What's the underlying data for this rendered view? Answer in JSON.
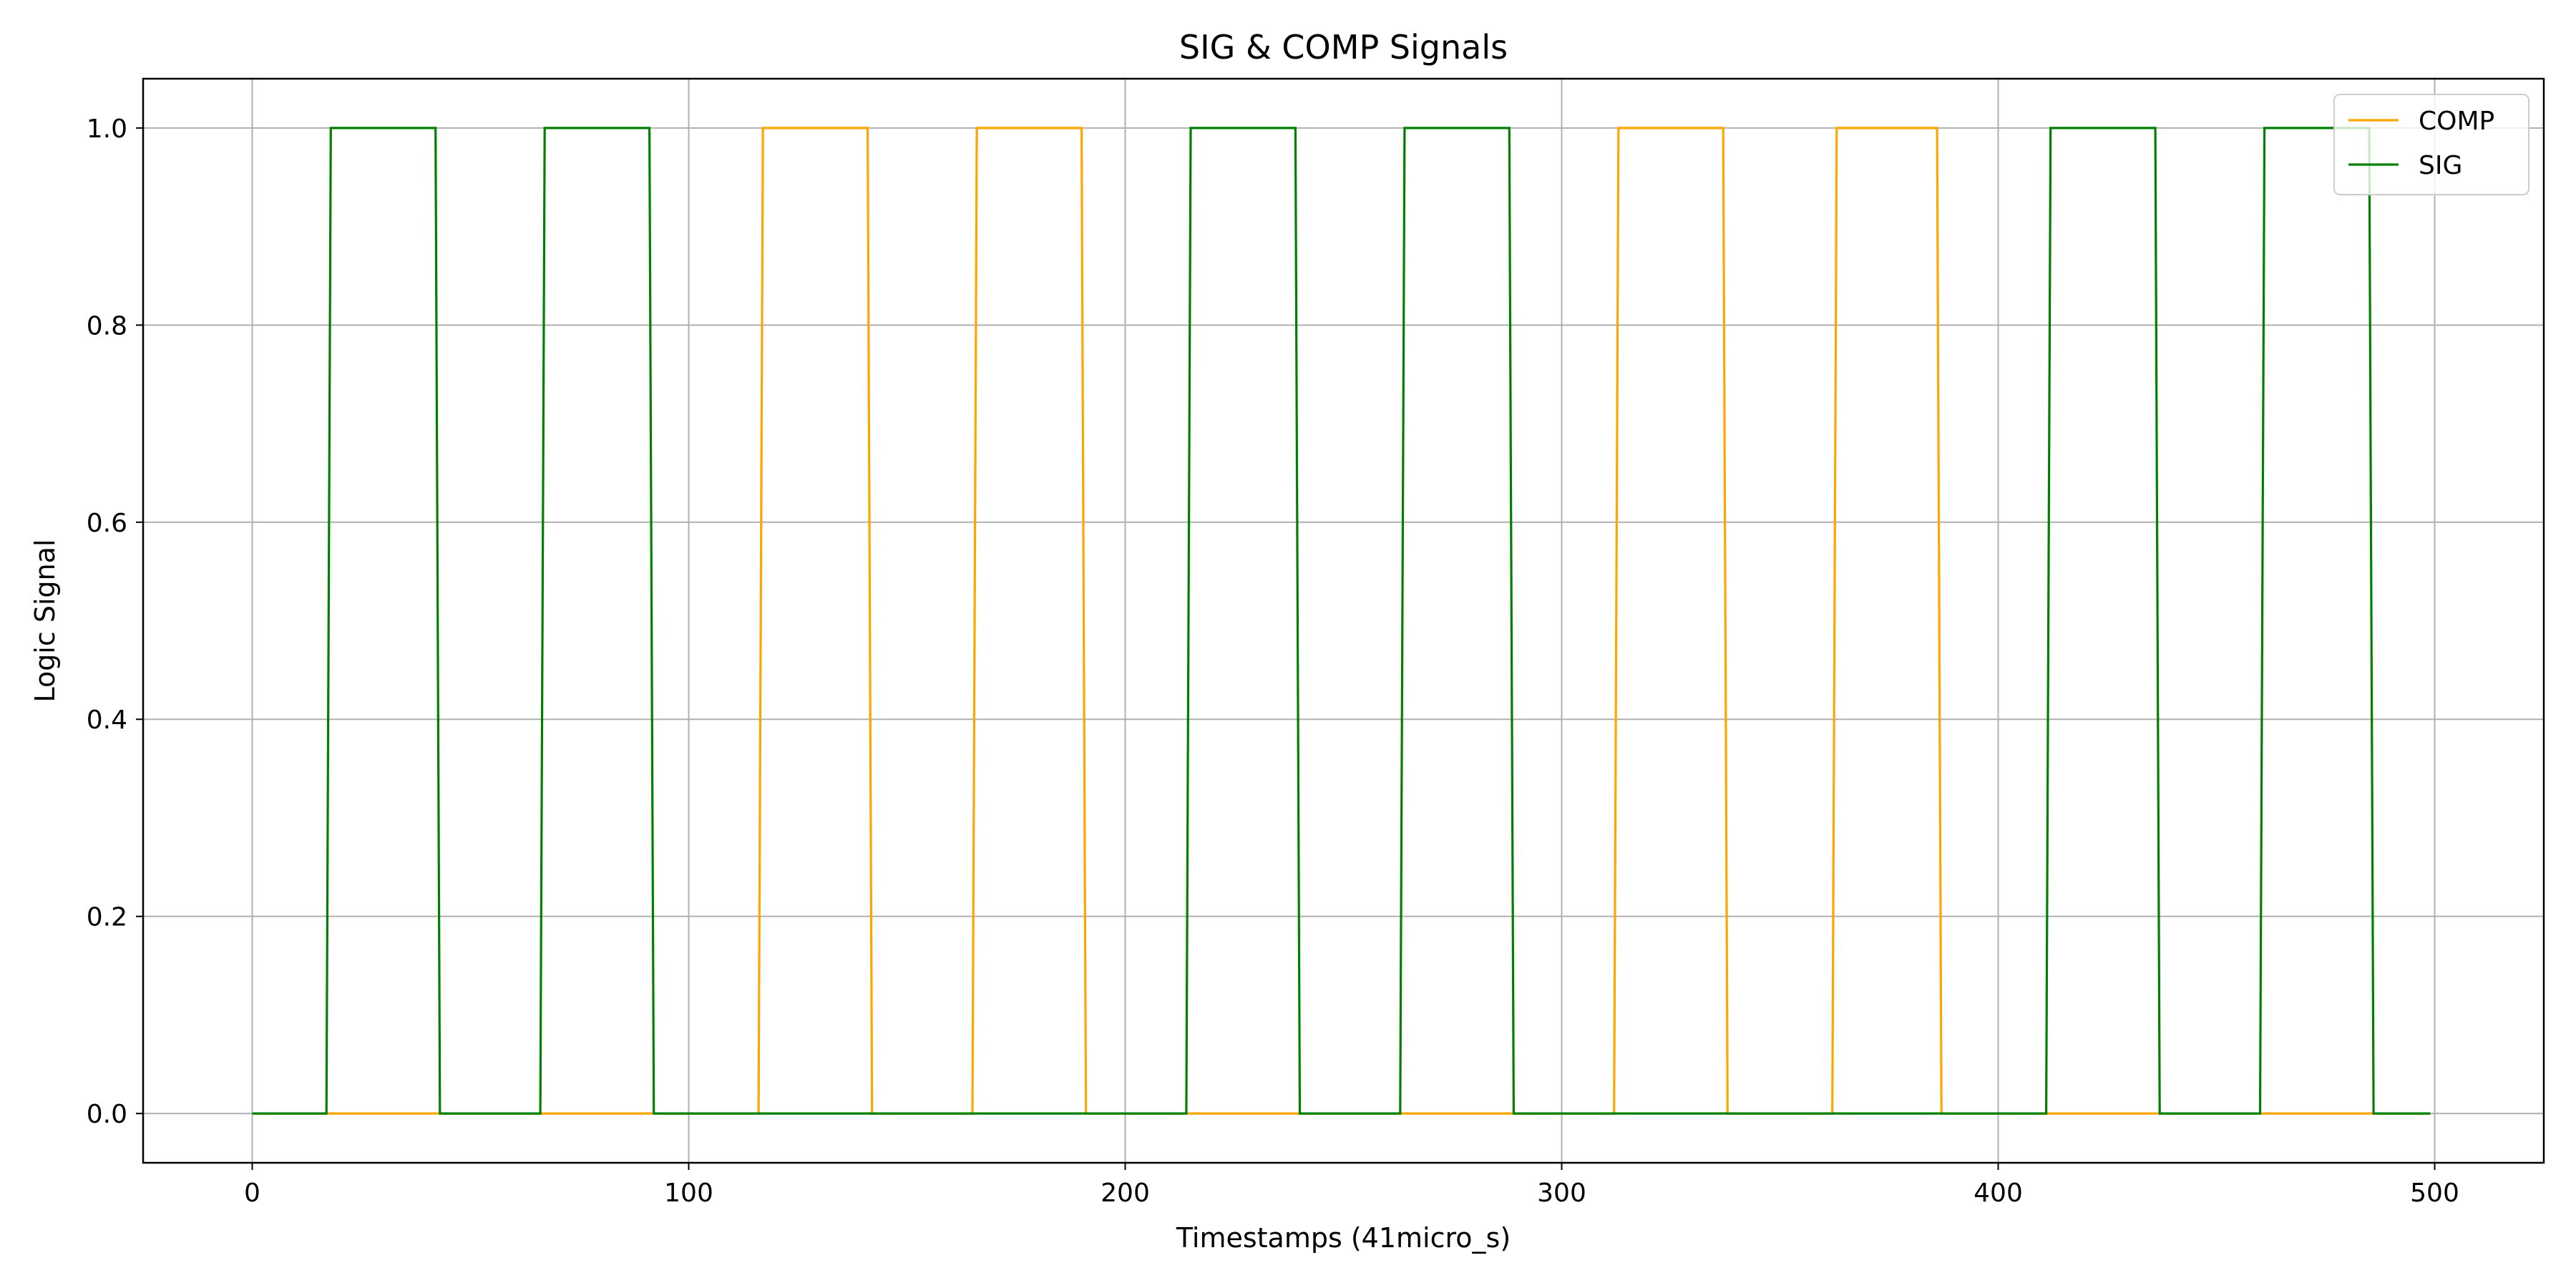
{
  "chart_data": {
    "type": "line",
    "title": "SIG & COMP Signals",
    "xlabel": "Timestamps (41micro_s)",
    "ylabel": "Logic Signal",
    "xlim": [
      -25,
      525
    ],
    "ylim": [
      -0.05,
      1.05
    ],
    "xticks": [
      0,
      100,
      200,
      300,
      400,
      500
    ],
    "xtick_labels": [
      "0",
      "100",
      "200",
      "300",
      "400",
      "500"
    ],
    "yticks": [
      0.0,
      0.2,
      0.4,
      0.6,
      0.8,
      1.0
    ],
    "ytick_labels": [
      "0.0",
      "0.2",
      "0.4",
      "0.6",
      "0.8",
      "1.0"
    ],
    "grid": true,
    "legend_position": "top-right",
    "series": [
      {
        "name": "COMP",
        "color": "#ffa500",
        "x": [
          0,
          116,
          117,
          141,
          142,
          165,
          166,
          190,
          191,
          312,
          313,
          337,
          338,
          362,
          363,
          386,
          387,
          499
        ],
        "y": [
          0,
          0,
          1,
          1,
          0,
          0,
          1,
          1,
          0,
          0,
          1,
          1,
          0,
          0,
          1,
          1,
          0,
          0
        ]
      },
      {
        "name": "SIG",
        "color": "#008000",
        "x": [
          0,
          17,
          18,
          42,
          43,
          66,
          67,
          91,
          92,
          214,
          215,
          239,
          240,
          263,
          264,
          288,
          289,
          411,
          412,
          436,
          437,
          460,
          461,
          485,
          486,
          499
        ],
        "y": [
          0,
          0,
          1,
          1,
          0,
          0,
          1,
          1,
          0,
          0,
          1,
          1,
          0,
          0,
          1,
          1,
          0,
          0,
          1,
          1,
          0,
          0,
          1,
          1,
          0,
          0
        ]
      }
    ]
  }
}
